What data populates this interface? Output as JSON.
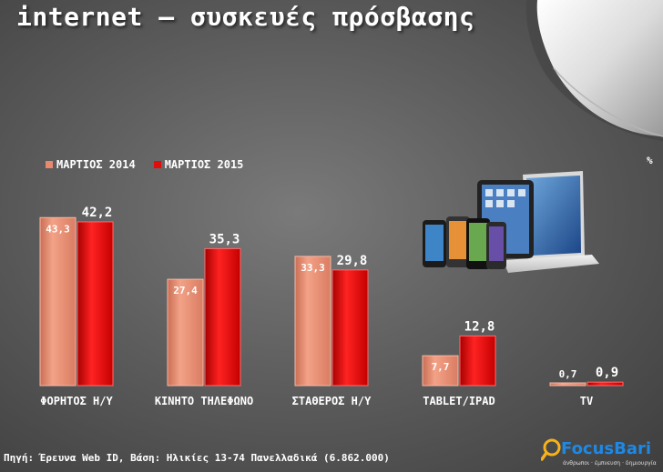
{
  "title": "internet – συσκευές πρόσβασης",
  "unit": "%",
  "colors": {
    "series_2014": "#e8896f",
    "series_2015": "#e00d0d"
  },
  "chart_data": {
    "type": "bar",
    "categories": [
      "ΦΟΡΗΤΟΣ Η/Υ",
      "ΚΙΝΗΤΟ ΤΗΛΕΦΩΝΟ",
      "ΣΤΑΘΕΡΟΣ Η/Υ",
      "TABLET/IPAD",
      "TV"
    ],
    "series": [
      {
        "name": "ΜΑΡΤΙΟΣ 2014",
        "values": [
          43.3,
          27.4,
          33.3,
          7.7,
          0.7
        ],
        "labels": [
          "43,3",
          "27,4",
          "33,3",
          "7,7",
          "0,7"
        ]
      },
      {
        "name": "ΜΑΡΤΙΟΣ 2015",
        "values": [
          42.2,
          35.3,
          29.8,
          12.8,
          0.9
        ],
        "labels": [
          "42,2",
          "35,3",
          "29,8",
          "12,8",
          "0,9"
        ]
      }
    ],
    "ylim": [
      0,
      45
    ]
  },
  "footer": "Πηγή: Έρευνα Web ID, Βάση: Ηλικίες 13-74 Πανελλαδικά (6.862.000)",
  "logo": {
    "name": "FocusBari",
    "tagline": "άνθρωποι · έμπνευση · δημιουργία"
  },
  "devices_icon": "devices-illustration"
}
